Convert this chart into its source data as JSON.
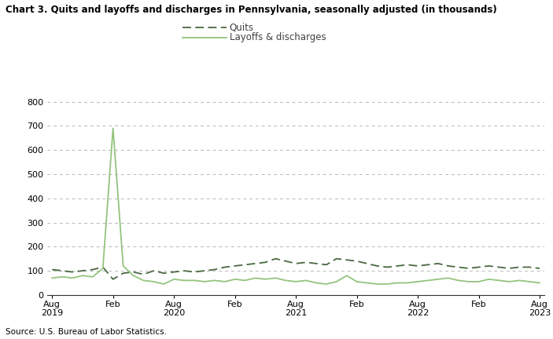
{
  "title": "Chart 3. Quits and layoffs and discharges in Pennsylvania, seasonally adjusted (in thousands)",
  "source": "Source: U.S. Bureau of Labor Statistics.",
  "quits_label": "Quits",
  "layoffs_label": "Layoffs & discharges",
  "quits_color": "#4a6741",
  "layoffs_color": "#93c47d",
  "background_color": "#ffffff",
  "grid_color": "#b0b0b0",
  "ylim": [
    0,
    800
  ],
  "yticks": [
    0,
    100,
    200,
    300,
    400,
    500,
    600,
    700,
    800
  ],
  "xtick_labels": [
    "Aug\n2019",
    "Feb",
    "Aug\n2020",
    "Feb",
    "Aug\n2021",
    "Feb",
    "Aug\n2022",
    "Feb",
    "Aug\n2023"
  ],
  "xtick_positions": [
    0,
    6,
    12,
    18,
    24,
    30,
    36,
    42,
    48
  ],
  "quits": [
    105,
    100,
    95,
    100,
    105,
    115,
    65,
    90,
    95,
    85,
    100,
    90,
    95,
    100,
    95,
    100,
    105,
    115,
    120,
    125,
    130,
    135,
    150,
    140,
    130,
    135,
    130,
    125,
    150,
    145,
    140,
    130,
    120,
    115,
    120,
    125,
    120,
    125,
    130,
    120,
    115,
    110,
    115,
    120,
    115,
    110,
    115,
    115,
    110
  ],
  "layoffs": [
    70,
    75,
    70,
    80,
    75,
    110,
    690,
    120,
    80,
    60,
    55,
    45,
    65,
    60,
    60,
    55,
    60,
    55,
    65,
    60,
    70,
    65,
    70,
    60,
    55,
    60,
    50,
    45,
    55,
    80,
    55,
    50,
    45,
    45,
    50,
    50,
    55,
    60,
    65,
    70,
    60,
    55,
    55,
    65,
    60,
    55,
    60,
    55,
    50
  ],
  "n_points": 49
}
